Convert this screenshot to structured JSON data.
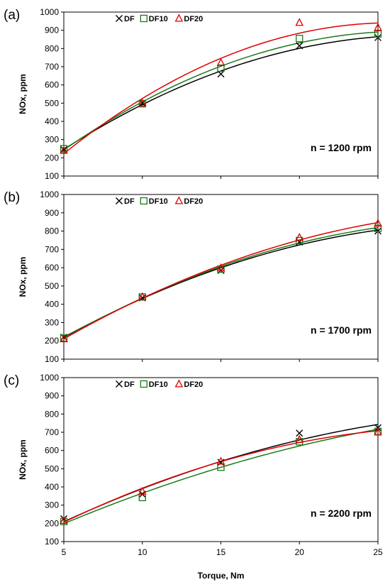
{
  "chart_data": [
    {
      "type": "scatter",
      "panel_label": "(a)",
      "annotation": "n = 1200 rpm",
      "ylabel": "NOx, ppm",
      "xlabel": "",
      "ylim": [
        100,
        1000
      ],
      "yticks": [
        "100",
        "200",
        "300",
        "400",
        "500",
        "600",
        "700",
        "800",
        "900",
        "1000"
      ],
      "xlim": [
        5,
        25
      ],
      "xticks": [],
      "grid": false,
      "legend": "top-left",
      "x": [
        5,
        10,
        15,
        20,
        25
      ],
      "series": [
        {
          "name": "DF",
          "marker": "x",
          "color": "#000000",
          "values": [
            245,
            500,
            660,
            815,
            860
          ]
        },
        {
          "name": "DF10",
          "marker": "square",
          "color": "#1a7a1a",
          "values": [
            250,
            497,
            692,
            855,
            880
          ]
        },
        {
          "name": "DF20",
          "marker": "triangle",
          "color": "#e00000",
          "values": [
            240,
            500,
            722,
            942,
            915
          ]
        }
      ]
    },
    {
      "type": "scatter",
      "panel_label": "(b)",
      "annotation": "n = 1700 rpm",
      "ylabel": "NOx, ppm",
      "xlabel": "",
      "ylim": [
        100,
        1000
      ],
      "yticks": [
        "100",
        "200",
        "300",
        "400",
        "500",
        "600",
        "700",
        "800",
        "900",
        "1000"
      ],
      "xlim": [
        5,
        25
      ],
      "xticks": [],
      "grid": false,
      "legend": "top-left",
      "x": [
        5,
        10,
        15,
        20,
        25
      ],
      "series": [
        {
          "name": "DF",
          "marker": "x",
          "color": "#000000",
          "values": [
            220,
            435,
            585,
            740,
            800
          ]
        },
        {
          "name": "DF10",
          "marker": "square",
          "color": "#1a7a1a",
          "values": [
            215,
            440,
            592,
            748,
            815
          ]
        },
        {
          "name": "DF20",
          "marker": "triangle",
          "color": "#e00000",
          "values": [
            210,
            440,
            598,
            765,
            842
          ]
        }
      ]
    },
    {
      "type": "scatter",
      "panel_label": "(c)",
      "annotation": "n = 2200 rpm",
      "ylabel": "NOx, ppm",
      "xlabel": "Torque, Nm",
      "ylim": [
        100,
        1000
      ],
      "yticks": [
        "100",
        "200",
        "300",
        "400",
        "500",
        "600",
        "700",
        "800",
        "900",
        "1000"
      ],
      "xlim": [
        5,
        25
      ],
      "xticks": [
        "5",
        "10",
        "15",
        "20",
        "25"
      ],
      "grid": false,
      "legend": "top-left",
      "x": [
        5,
        10,
        15,
        20,
        25
      ],
      "series": [
        {
          "name": "DF",
          "marker": "x",
          "color": "#000000",
          "values": [
            225,
            360,
            535,
            695,
            725
          ]
        },
        {
          "name": "DF10",
          "marker": "square",
          "color": "#1a7a1a",
          "values": [
            210,
            342,
            508,
            648,
            705
          ]
        },
        {
          "name": "DF20",
          "marker": "triangle",
          "color": "#e00000",
          "values": [
            215,
            375,
            540,
            660,
            700
          ]
        }
      ]
    }
  ]
}
